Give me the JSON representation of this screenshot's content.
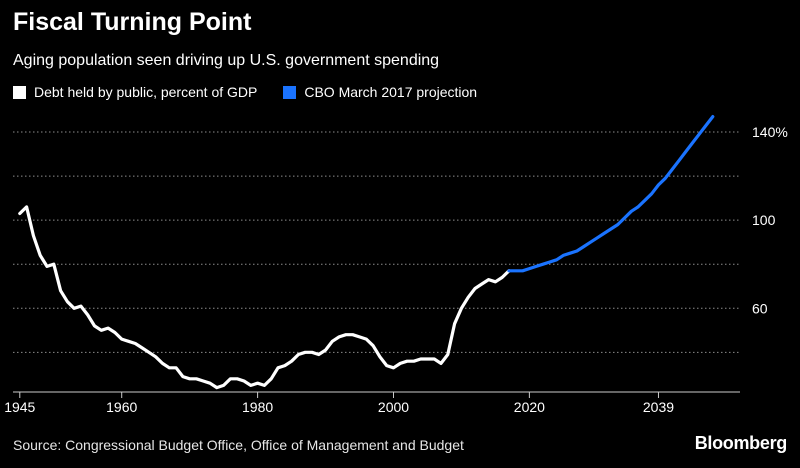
{
  "header": {
    "title": "Fiscal Turning Point",
    "subtitle": "Aging population seen driving up U.S. government spending"
  },
  "footer": {
    "source": "Source: Congressional Budget Office, Office of Management and Budget",
    "brand": "Bloomberg"
  },
  "colors": {
    "background": "#000000",
    "historical": "#ffffff",
    "projection": "#1a73ff",
    "grid": "#8c8c8c"
  },
  "chart_data": {
    "type": "line",
    "title": "Fiscal Turning Point",
    "subtitle": "Aging population seen driving up U.S. government spending",
    "xlabel": "",
    "ylabel": "",
    "xlim": [
      1944,
      2051
    ],
    "ylim": [
      22,
      150
    ],
    "x_ticks": [
      {
        "value": 1945,
        "label": "1945"
      },
      {
        "value": 1960,
        "label": "1960"
      },
      {
        "value": 1980,
        "label": "1980"
      },
      {
        "value": 2000,
        "label": "2000"
      },
      {
        "value": 2020,
        "label": "2020"
      },
      {
        "value": 2039,
        "label": "2039"
      }
    ],
    "y_ticks": [
      {
        "value": 140,
        "label": "140%"
      },
      {
        "value": 100,
        "label": "100"
      },
      {
        "value": 60,
        "label": "60"
      }
    ],
    "gridlines": [
      40,
      60,
      80,
      100,
      120,
      140
    ],
    "grid": true,
    "legend_position": "top-left",
    "series": [
      {
        "name": "Debt held by public, percent of GDP",
        "color": "#ffffff",
        "x": [
          1945,
          1946,
          1947,
          1948,
          1949,
          1950,
          1951,
          1952,
          1953,
          1954,
          1955,
          1956,
          1957,
          1958,
          1959,
          1960,
          1961,
          1962,
          1963,
          1964,
          1965,
          1966,
          1967,
          1968,
          1969,
          1970,
          1971,
          1972,
          1973,
          1974,
          1975,
          1976,
          1977,
          1978,
          1979,
          1980,
          1981,
          1982,
          1983,
          1984,
          1985,
          1986,
          1987,
          1988,
          1989,
          1990,
          1991,
          1992,
          1993,
          1994,
          1995,
          1996,
          1997,
          1998,
          1999,
          2000,
          2001,
          2002,
          2003,
          2004,
          2005,
          2006,
          2007,
          2008,
          2009,
          2010,
          2011,
          2012,
          2013,
          2014,
          2015,
          2016,
          2017
        ],
        "y": [
          103,
          106,
          93,
          84,
          79,
          80,
          68,
          63,
          60,
          61,
          57,
          52,
          50,
          51,
          49,
          46,
          45,
          44,
          42,
          40,
          38,
          35,
          33,
          33,
          29,
          28,
          28,
          27,
          26,
          24,
          25,
          28,
          28,
          27,
          25,
          26,
          25,
          28,
          33,
          34,
          36,
          39,
          40,
          40,
          39,
          41,
          45,
          47,
          48,
          48,
          47,
          46,
          43,
          38,
          34,
          33,
          35,
          36,
          36,
          37,
          37,
          37,
          35,
          39,
          53,
          60,
          65,
          69,
          71,
          73,
          72,
          74,
          77
        ]
      },
      {
        "name": "CBO March 2017 projection",
        "color": "#1a73ff",
        "x": [
          2017,
          2018,
          2019,
          2020,
          2021,
          2022,
          2023,
          2024,
          2025,
          2026,
          2027,
          2028,
          2029,
          2030,
          2031,
          2032,
          2033,
          2034,
          2035,
          2036,
          2037,
          2038,
          2039,
          2040,
          2041,
          2042,
          2043,
          2044,
          2045,
          2046,
          2047
        ],
        "y": [
          77,
          77,
          77,
          78,
          79,
          80,
          81,
          82,
          84,
          85,
          86,
          88,
          90,
          92,
          94,
          96,
          98,
          101,
          104,
          106,
          109,
          112,
          116,
          119,
          123,
          127,
          131,
          135,
          139,
          143,
          147
        ]
      }
    ]
  }
}
